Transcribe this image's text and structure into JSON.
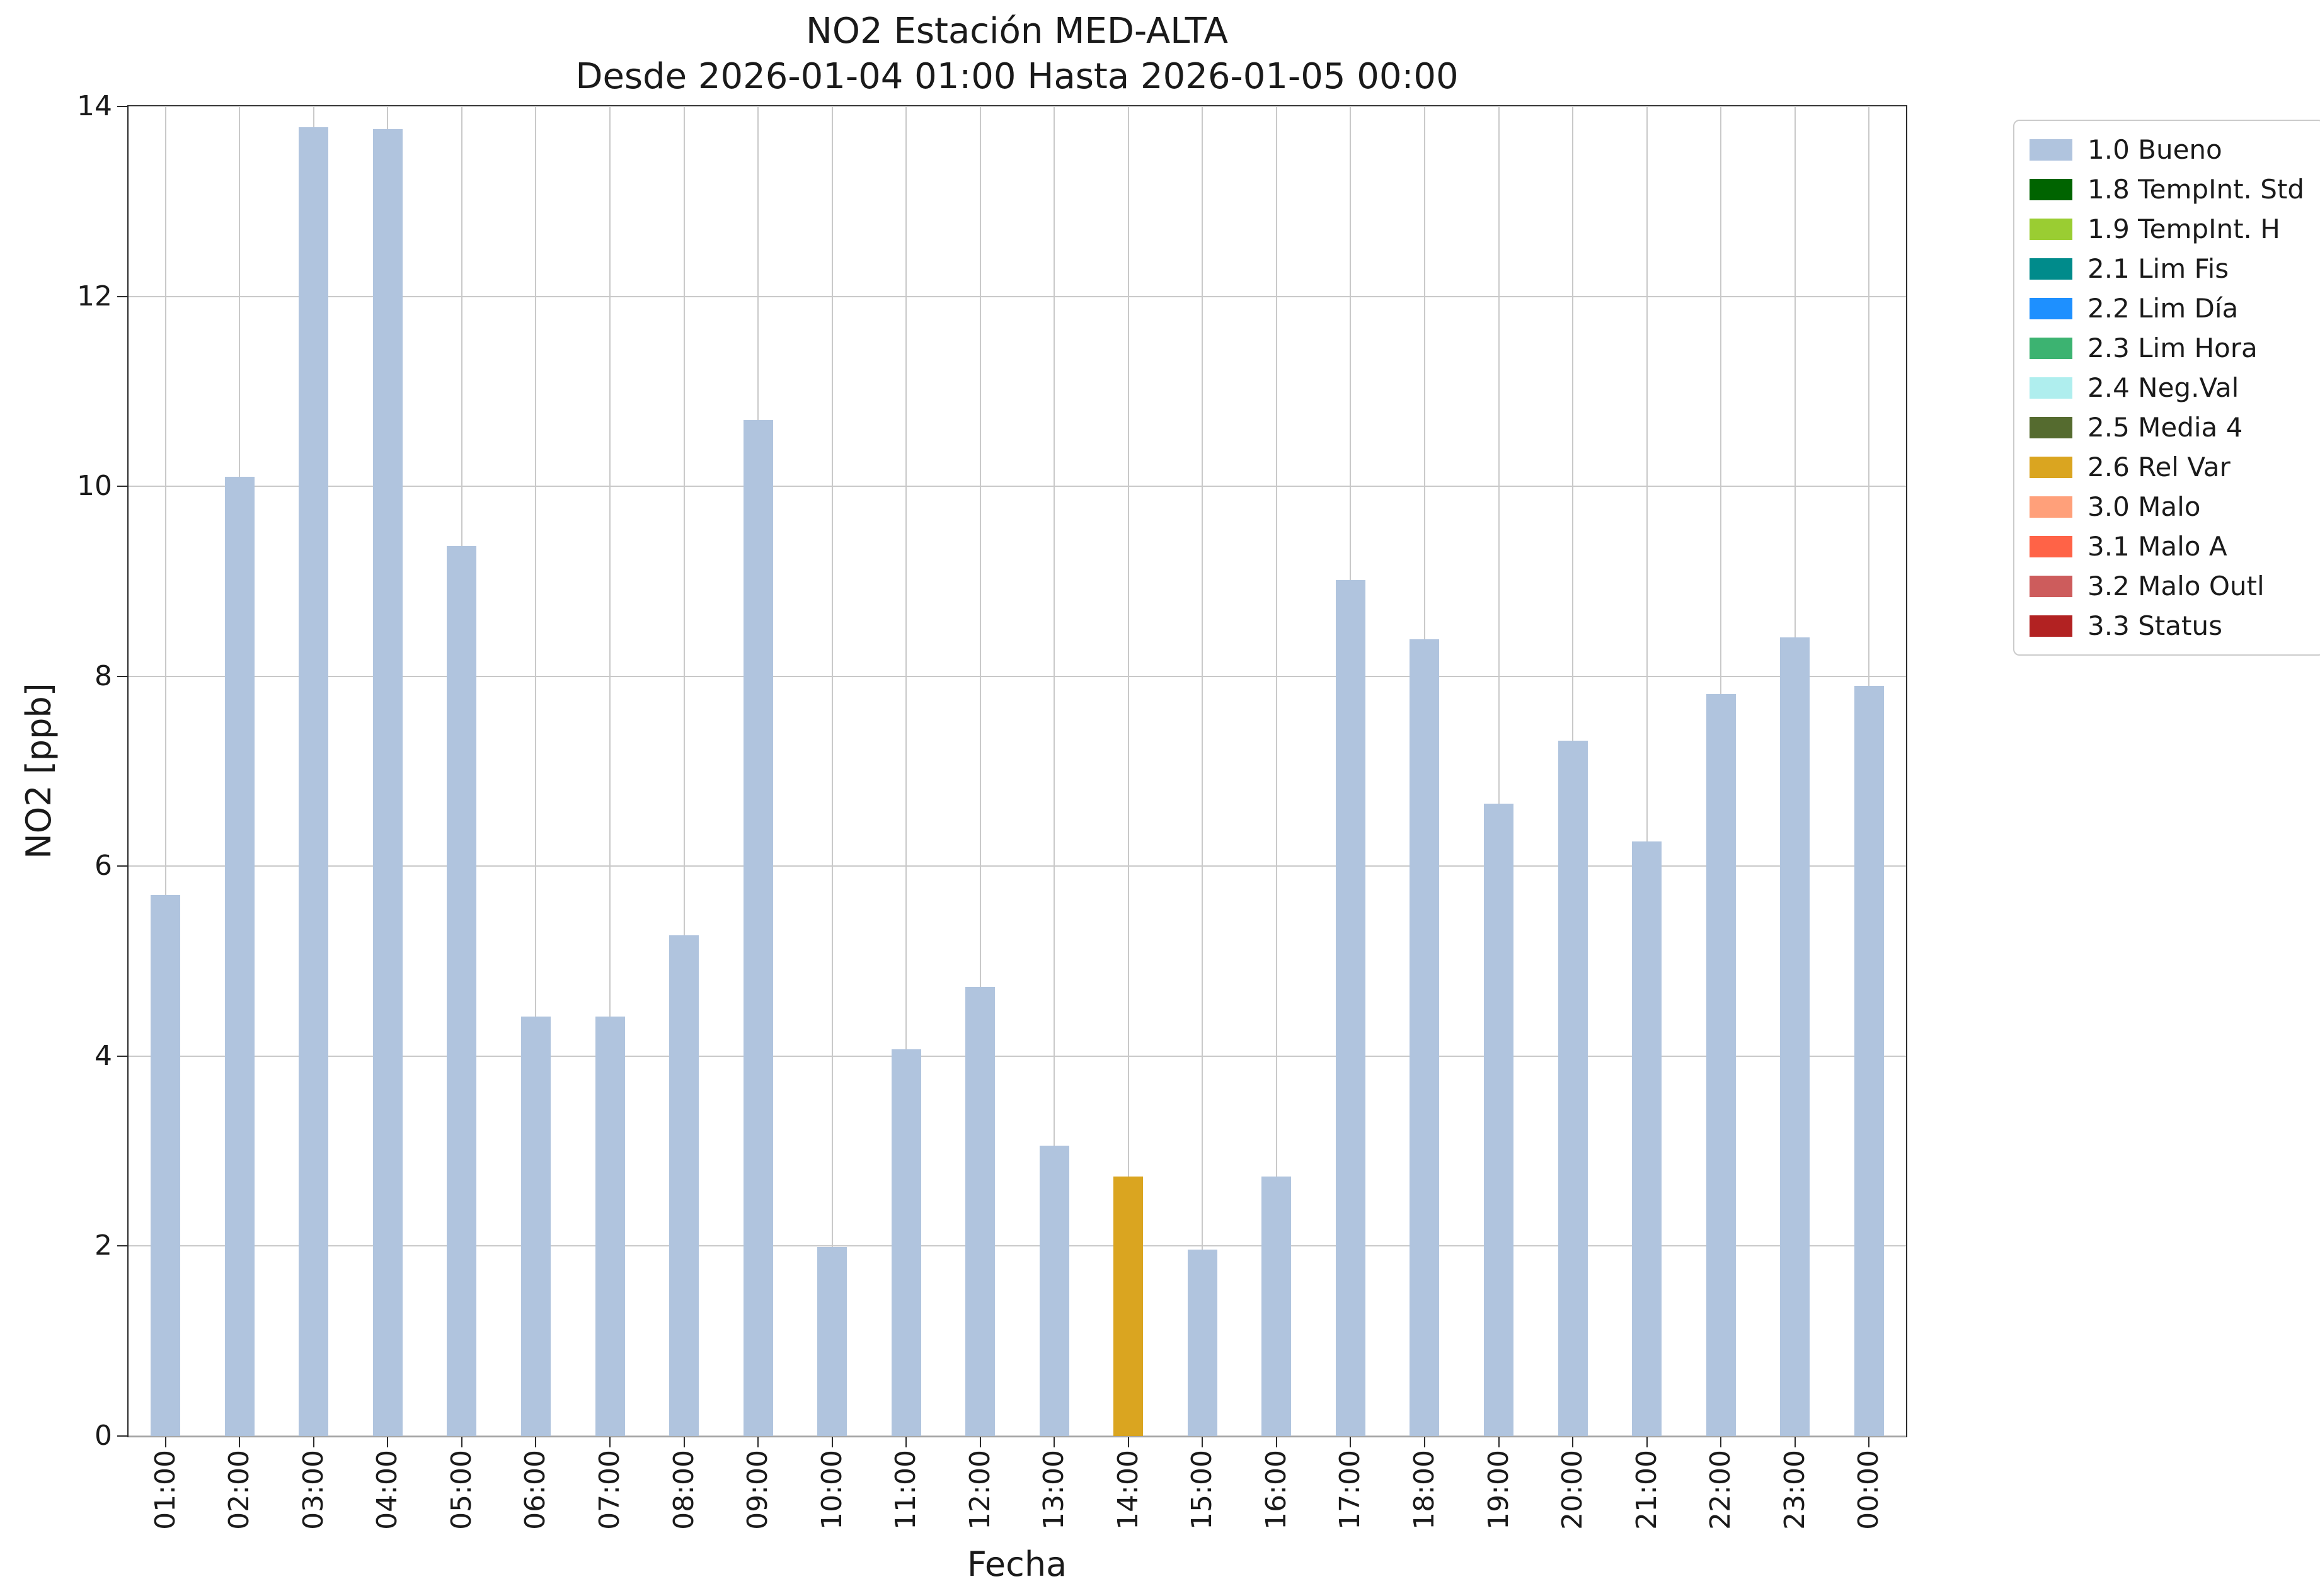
{
  "figure": {
    "title_line1": "NO2 Estación MED-ALTA",
    "title_line2": "Desde 2026-01-04 01:00 Hasta 2026-01-05 00:00"
  },
  "chart_data": {
    "type": "bar",
    "title": "NO2 Estación MED-ALTA",
    "subtitle": "Desde 2026-01-04 01:00 Hasta 2026-01-05 00:00",
    "xlabel": "Fecha",
    "ylabel": "NO2 [ppb]",
    "ylim": [
      0,
      14
    ],
    "yticks": [
      0,
      2,
      4,
      6,
      8,
      10,
      12,
      14
    ],
    "grid": true,
    "legend_position": "outside upper right",
    "categories": [
      "01:00",
      "02:00",
      "03:00",
      "04:00",
      "05:00",
      "06:00",
      "07:00",
      "08:00",
      "09:00",
      "10:00",
      "11:00",
      "12:00",
      "13:00",
      "14:00",
      "15:00",
      "16:00",
      "17:00",
      "18:00",
      "19:00",
      "20:00",
      "21:00",
      "22:00",
      "23:00",
      "00:00"
    ],
    "values": [
      5.7,
      10.1,
      13.78,
      13.76,
      9.37,
      4.42,
      4.42,
      5.27,
      10.7,
      1.99,
      4.07,
      4.73,
      3.06,
      2.73,
      1.96,
      2.73,
      9.01,
      8.39,
      6.66,
      7.32,
      6.26,
      7.81,
      8.41,
      7.9
    ],
    "bar_status": [
      "1.0 Bueno",
      "1.0 Bueno",
      "1.0 Bueno",
      "1.0 Bueno",
      "1.0 Bueno",
      "1.0 Bueno",
      "1.0 Bueno",
      "1.0 Bueno",
      "1.0 Bueno",
      "1.0 Bueno",
      "1.0 Bueno",
      "1.0 Bueno",
      "1.0 Bueno",
      "2.6 Rel Var",
      "1.0 Bueno",
      "1.0 Bueno",
      "1.0 Bueno",
      "1.0 Bueno",
      "1.0 Bueno",
      "1.0 Bueno",
      "1.0 Bueno",
      "1.0 Bueno",
      "1.0 Bueno",
      "1.0 Bueno"
    ],
    "legend": [
      {
        "label": "1.0 Bueno",
        "color": "#B0C4DE"
      },
      {
        "label": "1.8 TempInt. Std",
        "color": "#006400"
      },
      {
        "label": "1.9 TempInt. H",
        "color": "#9ACD32"
      },
      {
        "label": "2.1 Lim Fis",
        "color": "#008B8B"
      },
      {
        "label": "2.2 Lim Día",
        "color": "#1E90FF"
      },
      {
        "label": "2.3 Lim Hora",
        "color": "#3CB371"
      },
      {
        "label": "2.4 Neg.Val",
        "color": "#AFEEEE"
      },
      {
        "label": "2.5 Media 4",
        "color": "#556B2F"
      },
      {
        "label": "2.6 Rel Var",
        "color": "#DAA520"
      },
      {
        "label": "3.0 Malo",
        "color": "#FFA07A"
      },
      {
        "label": "3.1 Malo A",
        "color": "#FF6347"
      },
      {
        "label": "3.2 Malo Outl",
        "color": "#CD5C5C"
      },
      {
        "label": "3.3 Status",
        "color": "#B22222"
      }
    ]
  }
}
